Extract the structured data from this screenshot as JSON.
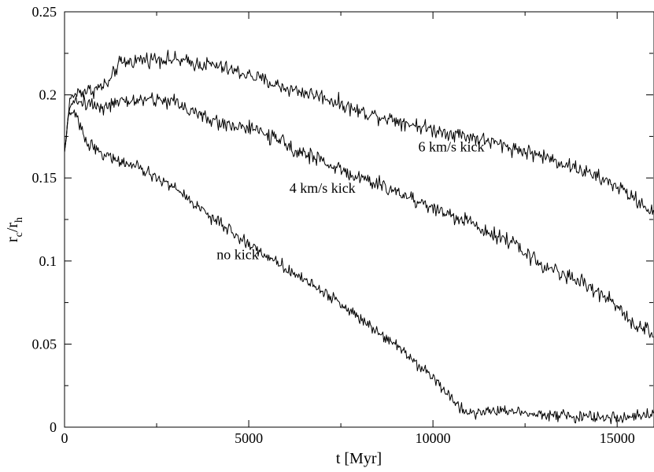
{
  "chart_data": {
    "type": "line",
    "title": "",
    "xlabel": "t [Myr]",
    "ylabel_main": "r",
    "ylabel_sub1": "c",
    "ylabel_mid": "/r",
    "ylabel_sub2": "h",
    "xlim": [
      0,
      16000
    ],
    "ylim": [
      0,
      0.25
    ],
    "xticks": [
      0,
      5000,
      10000,
      15000
    ],
    "xtick_labels": [
      "0",
      "5000",
      "10000",
      "15000"
    ],
    "yticks": [
      0,
      0.05,
      0.1,
      0.15,
      0.2,
      0.25
    ],
    "ytick_labels": [
      "0",
      "0.05",
      "0.1",
      "0.15",
      "0.2",
      "0.25"
    ],
    "grid": false,
    "legend": "none",
    "line_color": "#000000",
    "series": [
      {
        "label": "6 km/s kick",
        "noise": 0.0045,
        "points": [
          [
            0,
            0.165
          ],
          [
            150,
            0.198
          ],
          [
            400,
            0.202
          ],
          [
            800,
            0.203
          ],
          [
            1100,
            0.206
          ],
          [
            1250,
            0.208
          ],
          [
            1350,
            0.214
          ],
          [
            1500,
            0.219
          ],
          [
            2000,
            0.221
          ],
          [
            2500,
            0.222
          ],
          [
            3000,
            0.221
          ],
          [
            3500,
            0.219
          ],
          [
            4000,
            0.218
          ],
          [
            5000,
            0.212
          ],
          [
            6000,
            0.204
          ],
          [
            7000,
            0.199
          ],
          [
            8000,
            0.19
          ],
          [
            9000,
            0.185
          ],
          [
            10000,
            0.179
          ],
          [
            11000,
            0.175
          ],
          [
            12000,
            0.169
          ],
          [
            13000,
            0.163
          ],
          [
            14000,
            0.155
          ],
          [
            15000,
            0.145
          ],
          [
            15500,
            0.137
          ],
          [
            16000,
            0.129
          ]
        ]
      },
      {
        "label": "4 km/s kick",
        "noise": 0.0045,
        "points": [
          [
            0,
            0.165
          ],
          [
            150,
            0.195
          ],
          [
            500,
            0.196
          ],
          [
            1000,
            0.193
          ],
          [
            1500,
            0.195
          ],
          [
            2000,
            0.197
          ],
          [
            2500,
            0.197
          ],
          [
            3000,
            0.196
          ],
          [
            4000,
            0.184
          ],
          [
            5000,
            0.18
          ],
          [
            5500,
            0.176
          ],
          [
            6000,
            0.17
          ],
          [
            7000,
            0.16
          ],
          [
            8000,
            0.15
          ],
          [
            9000,
            0.142
          ],
          [
            10000,
            0.132
          ],
          [
            11000,
            0.123
          ],
          [
            12000,
            0.113
          ],
          [
            13000,
            0.097
          ],
          [
            14000,
            0.088
          ],
          [
            15000,
            0.073
          ],
          [
            15500,
            0.062
          ],
          [
            16000,
            0.057
          ]
        ]
      },
      {
        "label": "no kick",
        "noise": 0.0035,
        "points": [
          [
            0,
            0.165
          ],
          [
            100,
            0.187
          ],
          [
            250,
            0.19
          ],
          [
            600,
            0.172
          ],
          [
            1000,
            0.165
          ],
          [
            1500,
            0.16
          ],
          [
            2000,
            0.156
          ],
          [
            3000,
            0.144
          ],
          [
            4000,
            0.126
          ],
          [
            5000,
            0.11
          ],
          [
            6000,
            0.096
          ],
          [
            7000,
            0.082
          ],
          [
            8000,
            0.066
          ],
          [
            9000,
            0.05
          ],
          [
            9500,
            0.04
          ],
          [
            10000,
            0.03
          ],
          [
            10400,
            0.02
          ],
          [
            10800,
            0.01
          ],
          [
            11200,
            0.009
          ],
          [
            12000,
            0.01
          ],
          [
            13000,
            0.008
          ],
          [
            14000,
            0.006
          ],
          [
            15000,
            0.006
          ],
          [
            16000,
            0.007
          ]
        ]
      }
    ],
    "annotations": [
      {
        "text": "6 km/s kick",
        "x": 10500,
        "y": 0.166
      },
      {
        "text": "4 km/s kick",
        "x": 7000,
        "y": 0.141
      },
      {
        "text": "no kick",
        "x": 4700,
        "y": 0.101
      }
    ]
  }
}
